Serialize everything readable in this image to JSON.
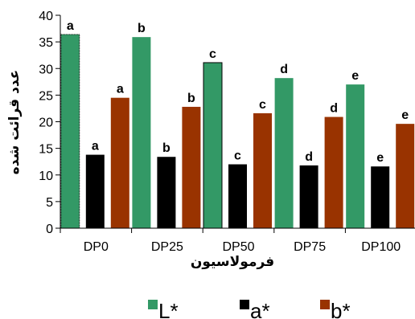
{
  "chart_data": {
    "type": "bar",
    "categories": [
      "DP0",
      "DP25",
      "DP50",
      "DP75",
      "DP100"
    ],
    "series": [
      {
        "name": "L*",
        "color": "#339966",
        "values": [
          36.4,
          35.9,
          31.1,
          28.2,
          27.0
        ],
        "labels": [
          "a",
          "b",
          "c",
          "d",
          "e"
        ]
      },
      {
        "name": "a*",
        "color": "#000000",
        "values": [
          13.8,
          13.4,
          12.0,
          11.8,
          11.6
        ],
        "labels": [
          "a",
          "b",
          "c",
          "d",
          "e"
        ]
      },
      {
        "name": "b*",
        "color": "#993300",
        "values": [
          24.5,
          22.8,
          21.6,
          20.9,
          19.6
        ],
        "labels": [
          "a",
          "b",
          "c",
          "d",
          "e"
        ]
      }
    ],
    "title": "",
    "xlabel": "فرمولاسيون",
    "ylabel": "عدد قرائت شده",
    "ylim": [
      0,
      40
    ],
    "yticks": [
      0,
      5,
      10,
      15,
      20,
      25,
      30,
      35,
      40
    ],
    "grid": false,
    "legend_position": "bottom"
  }
}
